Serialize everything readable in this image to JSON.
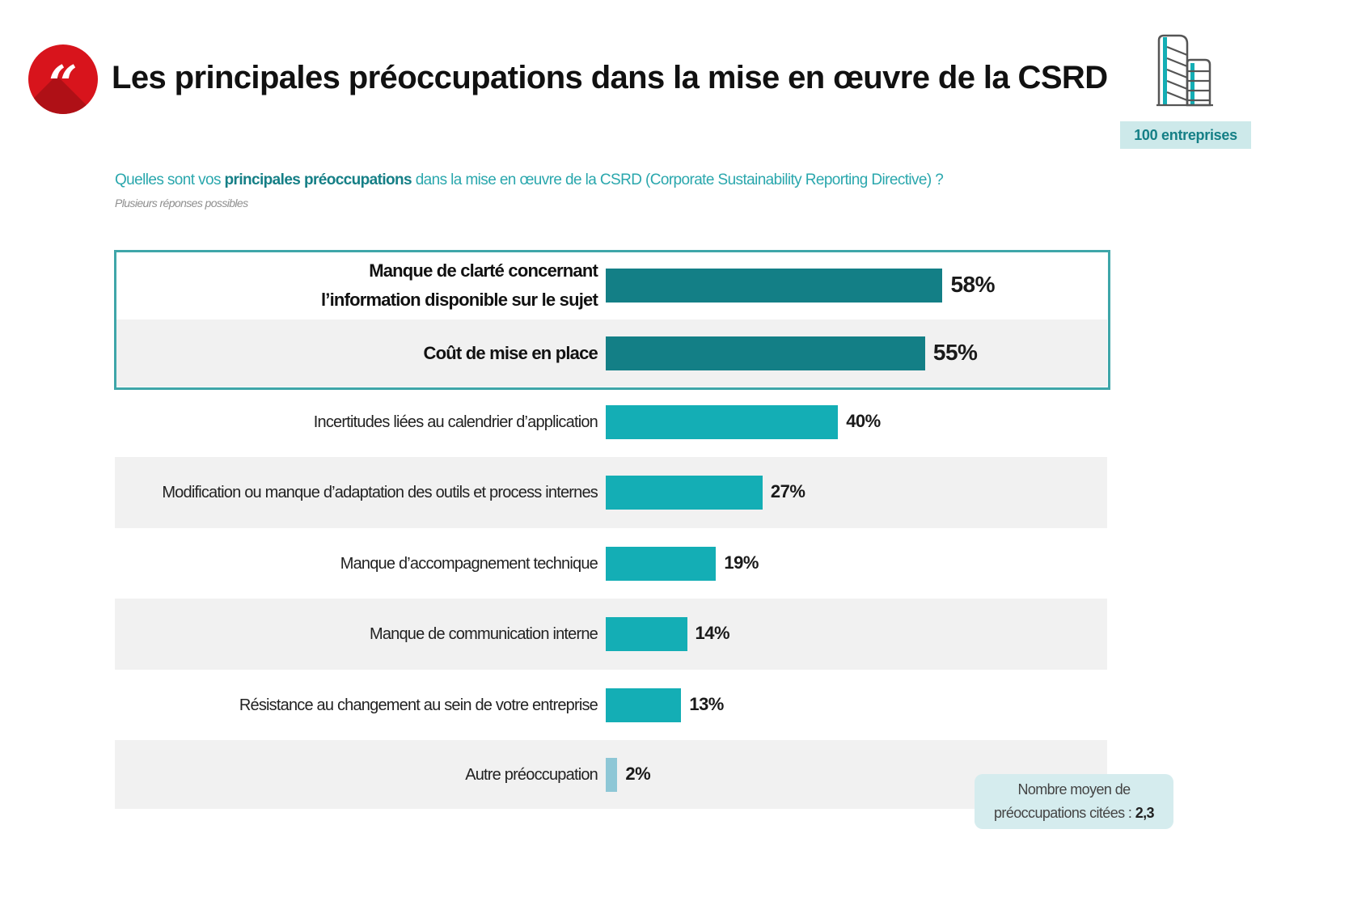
{
  "header": {
    "quote_icon": "quote-mark-icon",
    "title": "Les principales préoccupations dans la mise en œuvre de la CSRD",
    "building_icon": "building-icon",
    "sample_badge": "100 entreprises"
  },
  "question": {
    "prefix": "Quelles sont vos ",
    "emphasis": "principales préoccupations",
    "suffix": " dans la mise en œuvre de la CSRD (Corporate Sustainability Reporting Directive) ?",
    "note": "Plusieurs réponses possibles"
  },
  "colors": {
    "highlight_bar": "#137f86",
    "bar": "#14aeb5",
    "other_bar": "#8ec7d6",
    "highlight_border": "#3fa6a9",
    "accent_red": "#d8141c",
    "question_text": "#2aa7ad"
  },
  "footnote": {
    "line1": "Nombre moyen de",
    "line2": "préoccupations citées :",
    "value": "2,3"
  },
  "chart_data": {
    "type": "bar",
    "orientation": "horizontal",
    "title": "Les principales préoccupations dans la mise en œuvre de la CSRD",
    "xlabel": "",
    "ylabel": "",
    "xlim": [
      0,
      100
    ],
    "unit": "%",
    "grid": false,
    "highlighted_top": 2,
    "categories": [
      "Manque de clarté concernant l’information disponible sur le sujet",
      "Coût de mise en place",
      "Incertitudes liées au calendrier d’application",
      "Modification ou manque d’adaptation des outils et process internes",
      "Manque d’accompagnement technique",
      "Manque de communication interne",
      "Résistance au changement au sein de votre entreprise",
      "Autre préoccupation"
    ],
    "label_lines": [
      [
        "Manque de clarté concernant",
        "l’information disponible sur le sujet"
      ],
      [
        "Coût de mise en place"
      ],
      [
        "Incertitudes liées au calendrier d’application"
      ],
      [
        "Modification ou manque d’adaptation des outils et process internes"
      ],
      [
        "Manque d’accompagnement technique"
      ],
      [
        "Manque de communication interne"
      ],
      [
        "Résistance au changement au sein de votre entreprise"
      ],
      [
        "Autre préoccupation"
      ]
    ],
    "values": [
      58,
      55,
      40,
      27,
      19,
      14,
      13,
      2
    ],
    "value_labels": [
      "58%",
      "55%",
      "40%",
      "27%",
      "19%",
      "14%",
      "13%",
      "2%"
    ]
  }
}
